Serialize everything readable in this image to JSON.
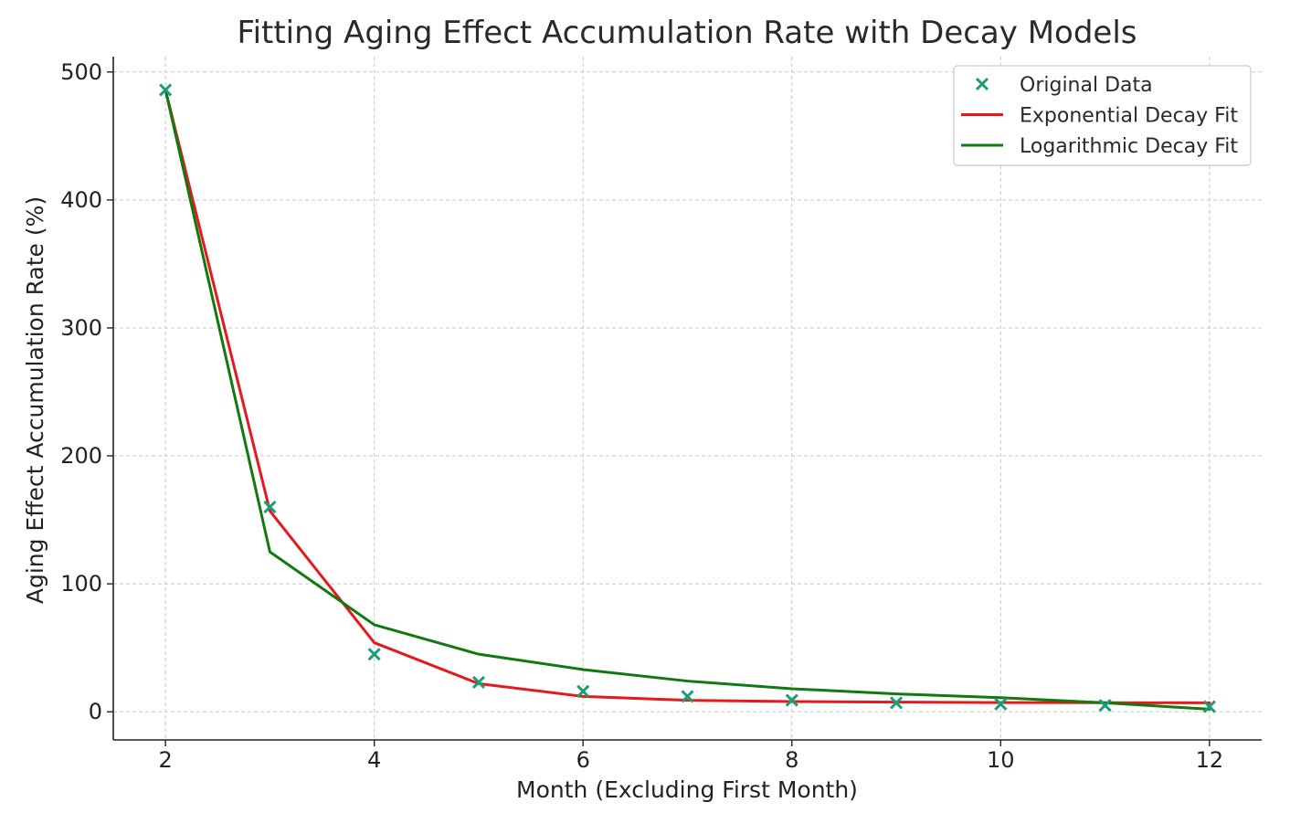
{
  "chart_data": {
    "type": "line",
    "title": "Fitting Aging Effect Accumulation Rate with Decay Models",
    "xlabel": "Month (Excluding First Month)",
    "ylabel": "Aging Effect Accumulation Rate (%)",
    "xlim": [
      1.5,
      12.5
    ],
    "ylim": [
      -22,
      512
    ],
    "xticks": [
      2,
      4,
      6,
      8,
      10,
      12
    ],
    "yticks": [
      0,
      100,
      200,
      300,
      400,
      500
    ],
    "grid": true,
    "legend_position": "top-right",
    "x": [
      2,
      3,
      4,
      5,
      6,
      7,
      8,
      9,
      10,
      11,
      12
    ],
    "series": [
      {
        "name": "Original Data",
        "kind": "scatter",
        "marker": "x",
        "color": "#1a9e77",
        "values": [
          486,
          160,
          45,
          23,
          16,
          12,
          9,
          7,
          6,
          5,
          4
        ]
      },
      {
        "name": "Exponential Decay Fit",
        "kind": "line",
        "color": "#e41a1c",
        "values": [
          486,
          157,
          54,
          22,
          12,
          9,
          8,
          7.5,
          7.2,
          7.1,
          7
        ]
      },
      {
        "name": "Logarithmic Decay Fit",
        "kind": "line",
        "color": "#107a10",
        "values": [
          486,
          125,
          68,
          45,
          33,
          24,
          18,
          14,
          11,
          7,
          2
        ]
      }
    ]
  }
}
